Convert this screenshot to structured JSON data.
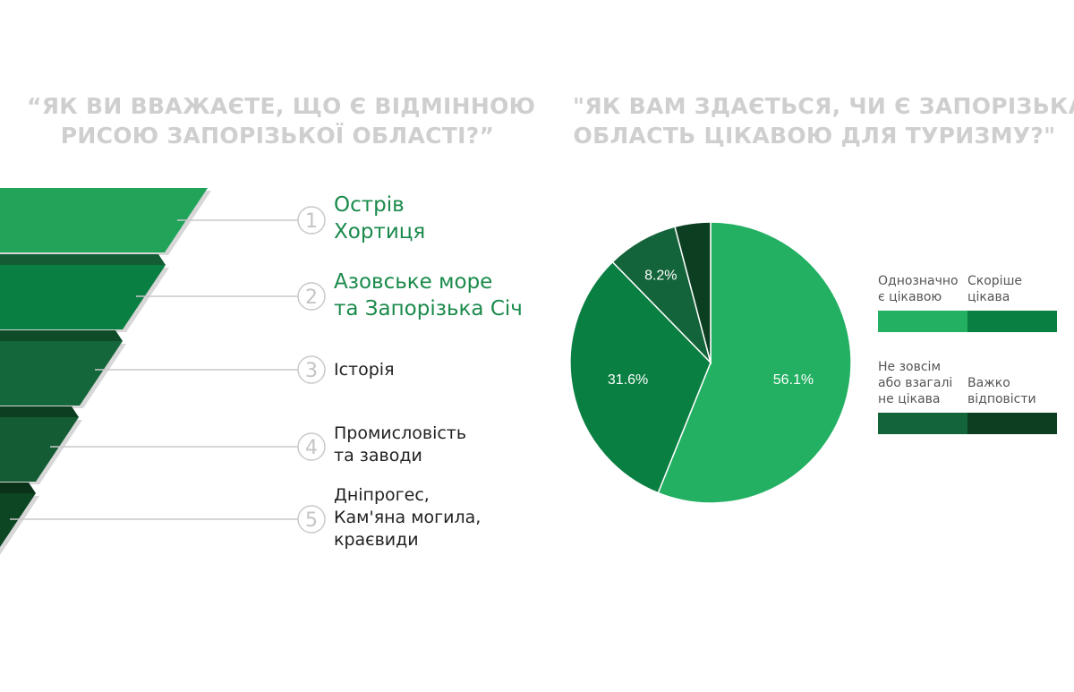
{
  "left_title": {
    "line1": "“ЯК ВИ ВВАЖАЄТЕ, ЩО Є ВІДМІННОЮ",
    "line2": "РИСОЮ ЗАПОРІЗЬКОЇ ОБЛАСТІ?”"
  },
  "right_title": {
    "line1": "\"ЯК ВАМ ЗДАЄТЬСЯ, ЧИ Є ЗАПОРІЗЬКА",
    "line2": "ОБЛАСТЬ ЦІКАВОЮ ДЛЯ ТУРИЗМУ?\""
  },
  "features": [
    {
      "rank": "1",
      "lines": [
        "Острів",
        "Хортиця"
      ],
      "color": "#22a35a"
    },
    {
      "rank": "2",
      "lines": [
        "Азовське море",
        "та Запорізька Січ"
      ],
      "color": "#0a7f42"
    },
    {
      "rank": "3",
      "lines": [
        "Історія"
      ],
      "color": "#13673a"
    },
    {
      "rank": "4",
      "lines": [
        "Промисловість",
        "та заводи"
      ],
      "color": "#145c33"
    },
    {
      "rank": "5",
      "lines": [
        "Дніпрогес,",
        "Кам'яна могила,",
        "краєвиди"
      ],
      "color": "#0c4623"
    }
  ],
  "chart_data": {
    "type": "pie",
    "title": "\"ЯК ВАМ ЗДАЄТЬСЯ, ЧИ Є ЗАПОРІЗЬКА ОБЛАСТЬ ЦІКАВОЮ ДЛЯ ТУРИЗМУ?\"",
    "slices": [
      {
        "label": "Однозначно є цікавою",
        "value": 56.1,
        "value_label": "56.1%",
        "color": "#23b062"
      },
      {
        "label": "Скоріше цікава",
        "value": 31.6,
        "value_label": "31.6%",
        "color": "#0a7f42"
      },
      {
        "label": "Не зовсім або взагалі не цікава",
        "value": 8.2,
        "value_label": "8.2%",
        "color": "#13643a"
      },
      {
        "label": "Важко відповісти",
        "value": 4.1,
        "value_label": "",
        "color": "#0c3f22"
      }
    ],
    "legend_position": "right"
  },
  "legend": [
    {
      "lines": [
        "Однозначно",
        "є цікавою"
      ],
      "color": "#23b062"
    },
    {
      "lines": [
        "Скоріше",
        "цікава"
      ],
      "color": "#0a7f42"
    },
    {
      "lines": [
        "Не зовсім",
        "або взагалі",
        "не цікава"
      ],
      "color": "#13643a"
    },
    {
      "lines": [
        "Важко",
        "відповісти"
      ],
      "color": "#0c3f22"
    }
  ]
}
